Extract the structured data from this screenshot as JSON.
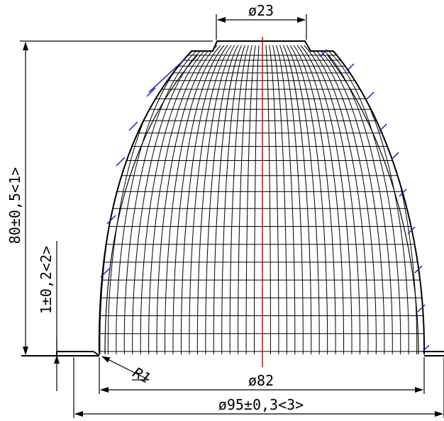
{
  "dimensions": {
    "top_diameter": "ø23",
    "height": "80±0,5<1>",
    "flange_thickness": "1±0,2<2>",
    "radius": "R1",
    "inner_diameter": "ø82",
    "outer_diameter": "ø95±0,3<3>"
  },
  "colors": {
    "outline": "#000000",
    "centerline": "#e00000",
    "hatch": "#1a1acc"
  }
}
